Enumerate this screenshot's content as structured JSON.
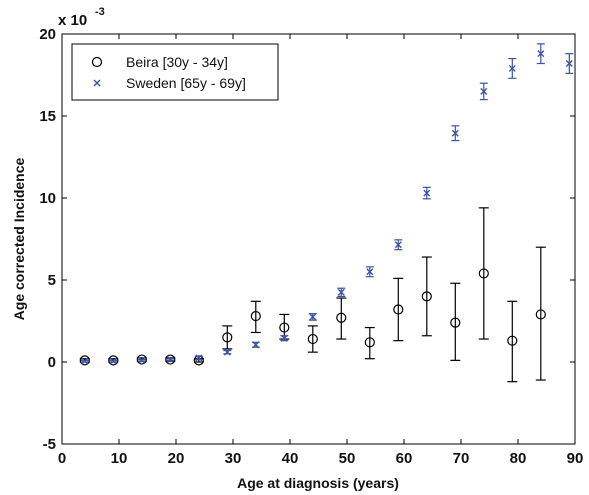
{
  "chart_data": {
    "type": "scatter",
    "title": "",
    "xlabel": "Age at diagnosis (years)",
    "ylabel": "Age corrected Incidence",
    "y_multiplier_label": "x 10",
    "y_multiplier_exponent": "-3",
    "xlim": [
      0,
      90
    ],
    "ylim": [
      -5,
      20
    ],
    "x_ticks": [
      0,
      10,
      20,
      30,
      40,
      50,
      60,
      70,
      80,
      90
    ],
    "y_ticks": [
      -5,
      0,
      5,
      10,
      15,
      20
    ],
    "grid": false,
    "legend_position": "top-left",
    "series": [
      {
        "name": "Beira [30y - 34y]",
        "marker": "circle",
        "color": "#000000",
        "points": [
          {
            "x": 4,
            "y": 0.1,
            "low": 0.0,
            "high": 0.2
          },
          {
            "x": 9,
            "y": 0.1,
            "low": 0.0,
            "high": 0.2
          },
          {
            "x": 14,
            "y": 0.15,
            "low": 0.05,
            "high": 0.25
          },
          {
            "x": 19,
            "y": 0.15,
            "low": 0.05,
            "high": 0.25
          },
          {
            "x": 24,
            "y": 0.1,
            "low": 0.0,
            "high": 0.2
          },
          {
            "x": 29,
            "y": 1.5,
            "low": 0.8,
            "high": 2.2
          },
          {
            "x": 34,
            "y": 2.8,
            "low": 1.8,
            "high": 3.7
          },
          {
            "x": 39,
            "y": 2.1,
            "low": 1.4,
            "high": 2.9
          },
          {
            "x": 44,
            "y": 1.4,
            "low": 0.6,
            "high": 2.2
          },
          {
            "x": 49,
            "y": 2.7,
            "low": 1.4,
            "high": 3.9
          },
          {
            "x": 54,
            "y": 1.2,
            "low": 0.2,
            "high": 2.1
          },
          {
            "x": 59,
            "y": 3.2,
            "low": 1.3,
            "high": 5.1
          },
          {
            "x": 64,
            "y": 4.0,
            "low": 1.6,
            "high": 6.4
          },
          {
            "x": 69,
            "y": 2.4,
            "low": 0.1,
            "high": 4.8
          },
          {
            "x": 74,
            "y": 5.4,
            "low": 1.4,
            "high": 9.4
          },
          {
            "x": 79,
            "y": 1.3,
            "low": -1.2,
            "high": 3.7
          },
          {
            "x": 84,
            "y": 2.9,
            "low": -1.1,
            "high": 7.0
          }
        ]
      },
      {
        "name": "Sweden [65y - 69y]",
        "marker": "x",
        "color": "#3a53a4",
        "points": [
          {
            "x": 4,
            "y": 0.05,
            "low": 0.0,
            "high": 0.1
          },
          {
            "x": 9,
            "y": 0.05,
            "low": 0.0,
            "high": 0.1
          },
          {
            "x": 14,
            "y": 0.1,
            "low": 0.05,
            "high": 0.15
          },
          {
            "x": 19,
            "y": 0.15,
            "low": 0.1,
            "high": 0.2
          },
          {
            "x": 24,
            "y": 0.25,
            "low": 0.15,
            "high": 0.35
          },
          {
            "x": 29,
            "y": 0.6,
            "low": 0.5,
            "high": 0.7
          },
          {
            "x": 34,
            "y": 1.05,
            "low": 0.9,
            "high": 1.2
          },
          {
            "x": 39,
            "y": 1.45,
            "low": 1.3,
            "high": 1.6
          },
          {
            "x": 44,
            "y": 2.75,
            "low": 2.55,
            "high": 2.95
          },
          {
            "x": 49,
            "y": 4.25,
            "low": 4.0,
            "high": 4.5
          },
          {
            "x": 54,
            "y": 5.5,
            "low": 5.2,
            "high": 5.8
          },
          {
            "x": 59,
            "y": 7.15,
            "low": 6.85,
            "high": 7.45
          },
          {
            "x": 64,
            "y": 10.3,
            "low": 9.95,
            "high": 10.65
          },
          {
            "x": 69,
            "y": 13.95,
            "low": 13.5,
            "high": 14.4
          },
          {
            "x": 74,
            "y": 16.5,
            "low": 16.0,
            "high": 17.0
          },
          {
            "x": 79,
            "y": 17.9,
            "low": 17.3,
            "high": 18.5
          },
          {
            "x": 84,
            "y": 18.8,
            "low": 18.2,
            "high": 19.4
          },
          {
            "x": 89,
            "y": 18.2,
            "low": 17.6,
            "high": 18.8
          }
        ]
      }
    ]
  }
}
